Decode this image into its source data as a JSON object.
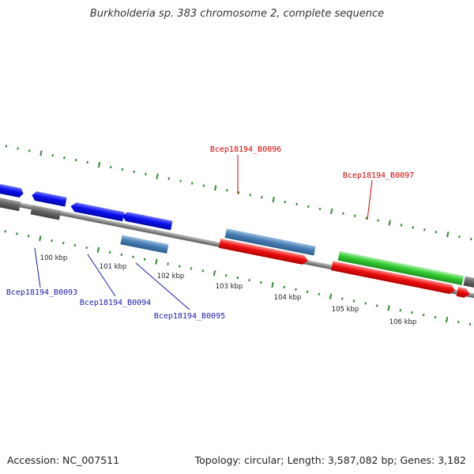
{
  "title": "Burkholderia sp. 383 chromosome 2, complete sequence",
  "footer": {
    "accession": "Accession: NC_007511",
    "summary": "Topology: circular; Length: 3,587,082 bp; Genes: 3,182"
  },
  "colors": {
    "backbone": "#8a8a8a",
    "tick": "#2e8b2e",
    "label_red": "#d40000",
    "label_blue": "#1a1ab0",
    "gene_blue": "#0a10ee",
    "gene_steel": "#4a7fb5",
    "gene_red": "#ee1010",
    "gene_green": "#33cc33",
    "gene_grey": "#666666",
    "gene_light": "#c8c8c8"
  },
  "kbp_labels": [
    "100 kbp",
    "101 kbp",
    "102 kbp",
    "103 kbp",
    "104 kbp",
    "105 kbp",
    "106 kbp"
  ],
  "gene_labels": {
    "b0093": "Bcep18194_B0093",
    "b0094": "Bcep18194_B0094",
    "b0095": "Bcep18194_B0095",
    "b0096": "Bcep18194_B0096",
    "b0097": "Bcep18194_B0097"
  }
}
